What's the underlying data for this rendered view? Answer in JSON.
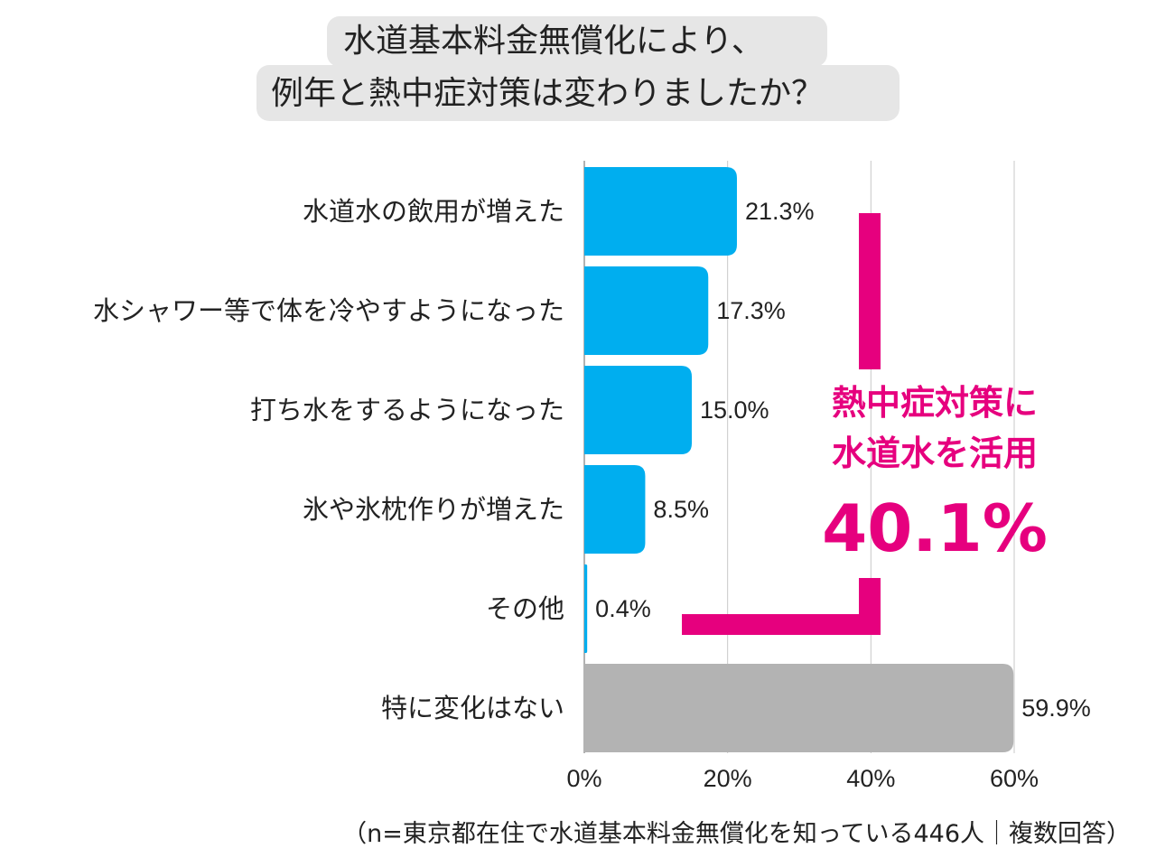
{
  "title": {
    "line1": "水道基本料金無償化により、",
    "line2": "例年と熱中症対策は変わりましたか？"
  },
  "callout": {
    "line1": "熱中症対策に",
    "line2": "水道水を活用",
    "value": "40.1%",
    "color": "#e6007e"
  },
  "footnote": "（n=東京都在住で水道基本料金無償化を知っている446人｜複数回答）",
  "colors": {
    "bar_primary": "#00aeef",
    "bar_neutral": "#b3b3b3",
    "grid": "#c8c8c8",
    "accent": "#e6007e",
    "title_background": "#e6e6e6"
  },
  "chart_data": {
    "type": "bar",
    "orientation": "horizontal",
    "categories": [
      "水道水の飲用が増えた",
      "水シャワー等で体を冷やすようになった",
      "打ち水をするようになった",
      "氷や氷枕作りが増えた",
      "その他",
      "特に変化はない"
    ],
    "values": [
      21.3,
      17.3,
      15.0,
      8.5,
      0.4,
      59.9
    ],
    "value_labels": [
      "21.3%",
      "17.3%",
      "15.0%",
      "8.5%",
      "0.4%",
      "59.9%"
    ],
    "bar_colors": [
      "#00aeef",
      "#00aeef",
      "#00aeef",
      "#00aeef",
      "#00aeef",
      "#b3b3b3"
    ],
    "xlim": [
      0,
      60
    ],
    "xticks": [
      0,
      20,
      40,
      60
    ],
    "xtick_labels": [
      "0%",
      "20%",
      "40%",
      "60%"
    ],
    "grid": true,
    "bracket": {
      "categories": [
        "水道水の飲用が増えた",
        "水シャワー等で体を冷やすようになった",
        "打ち水をするようになった",
        "氷や氷枕作りが増えた",
        "その他"
      ],
      "total_label": "40.1%"
    }
  }
}
